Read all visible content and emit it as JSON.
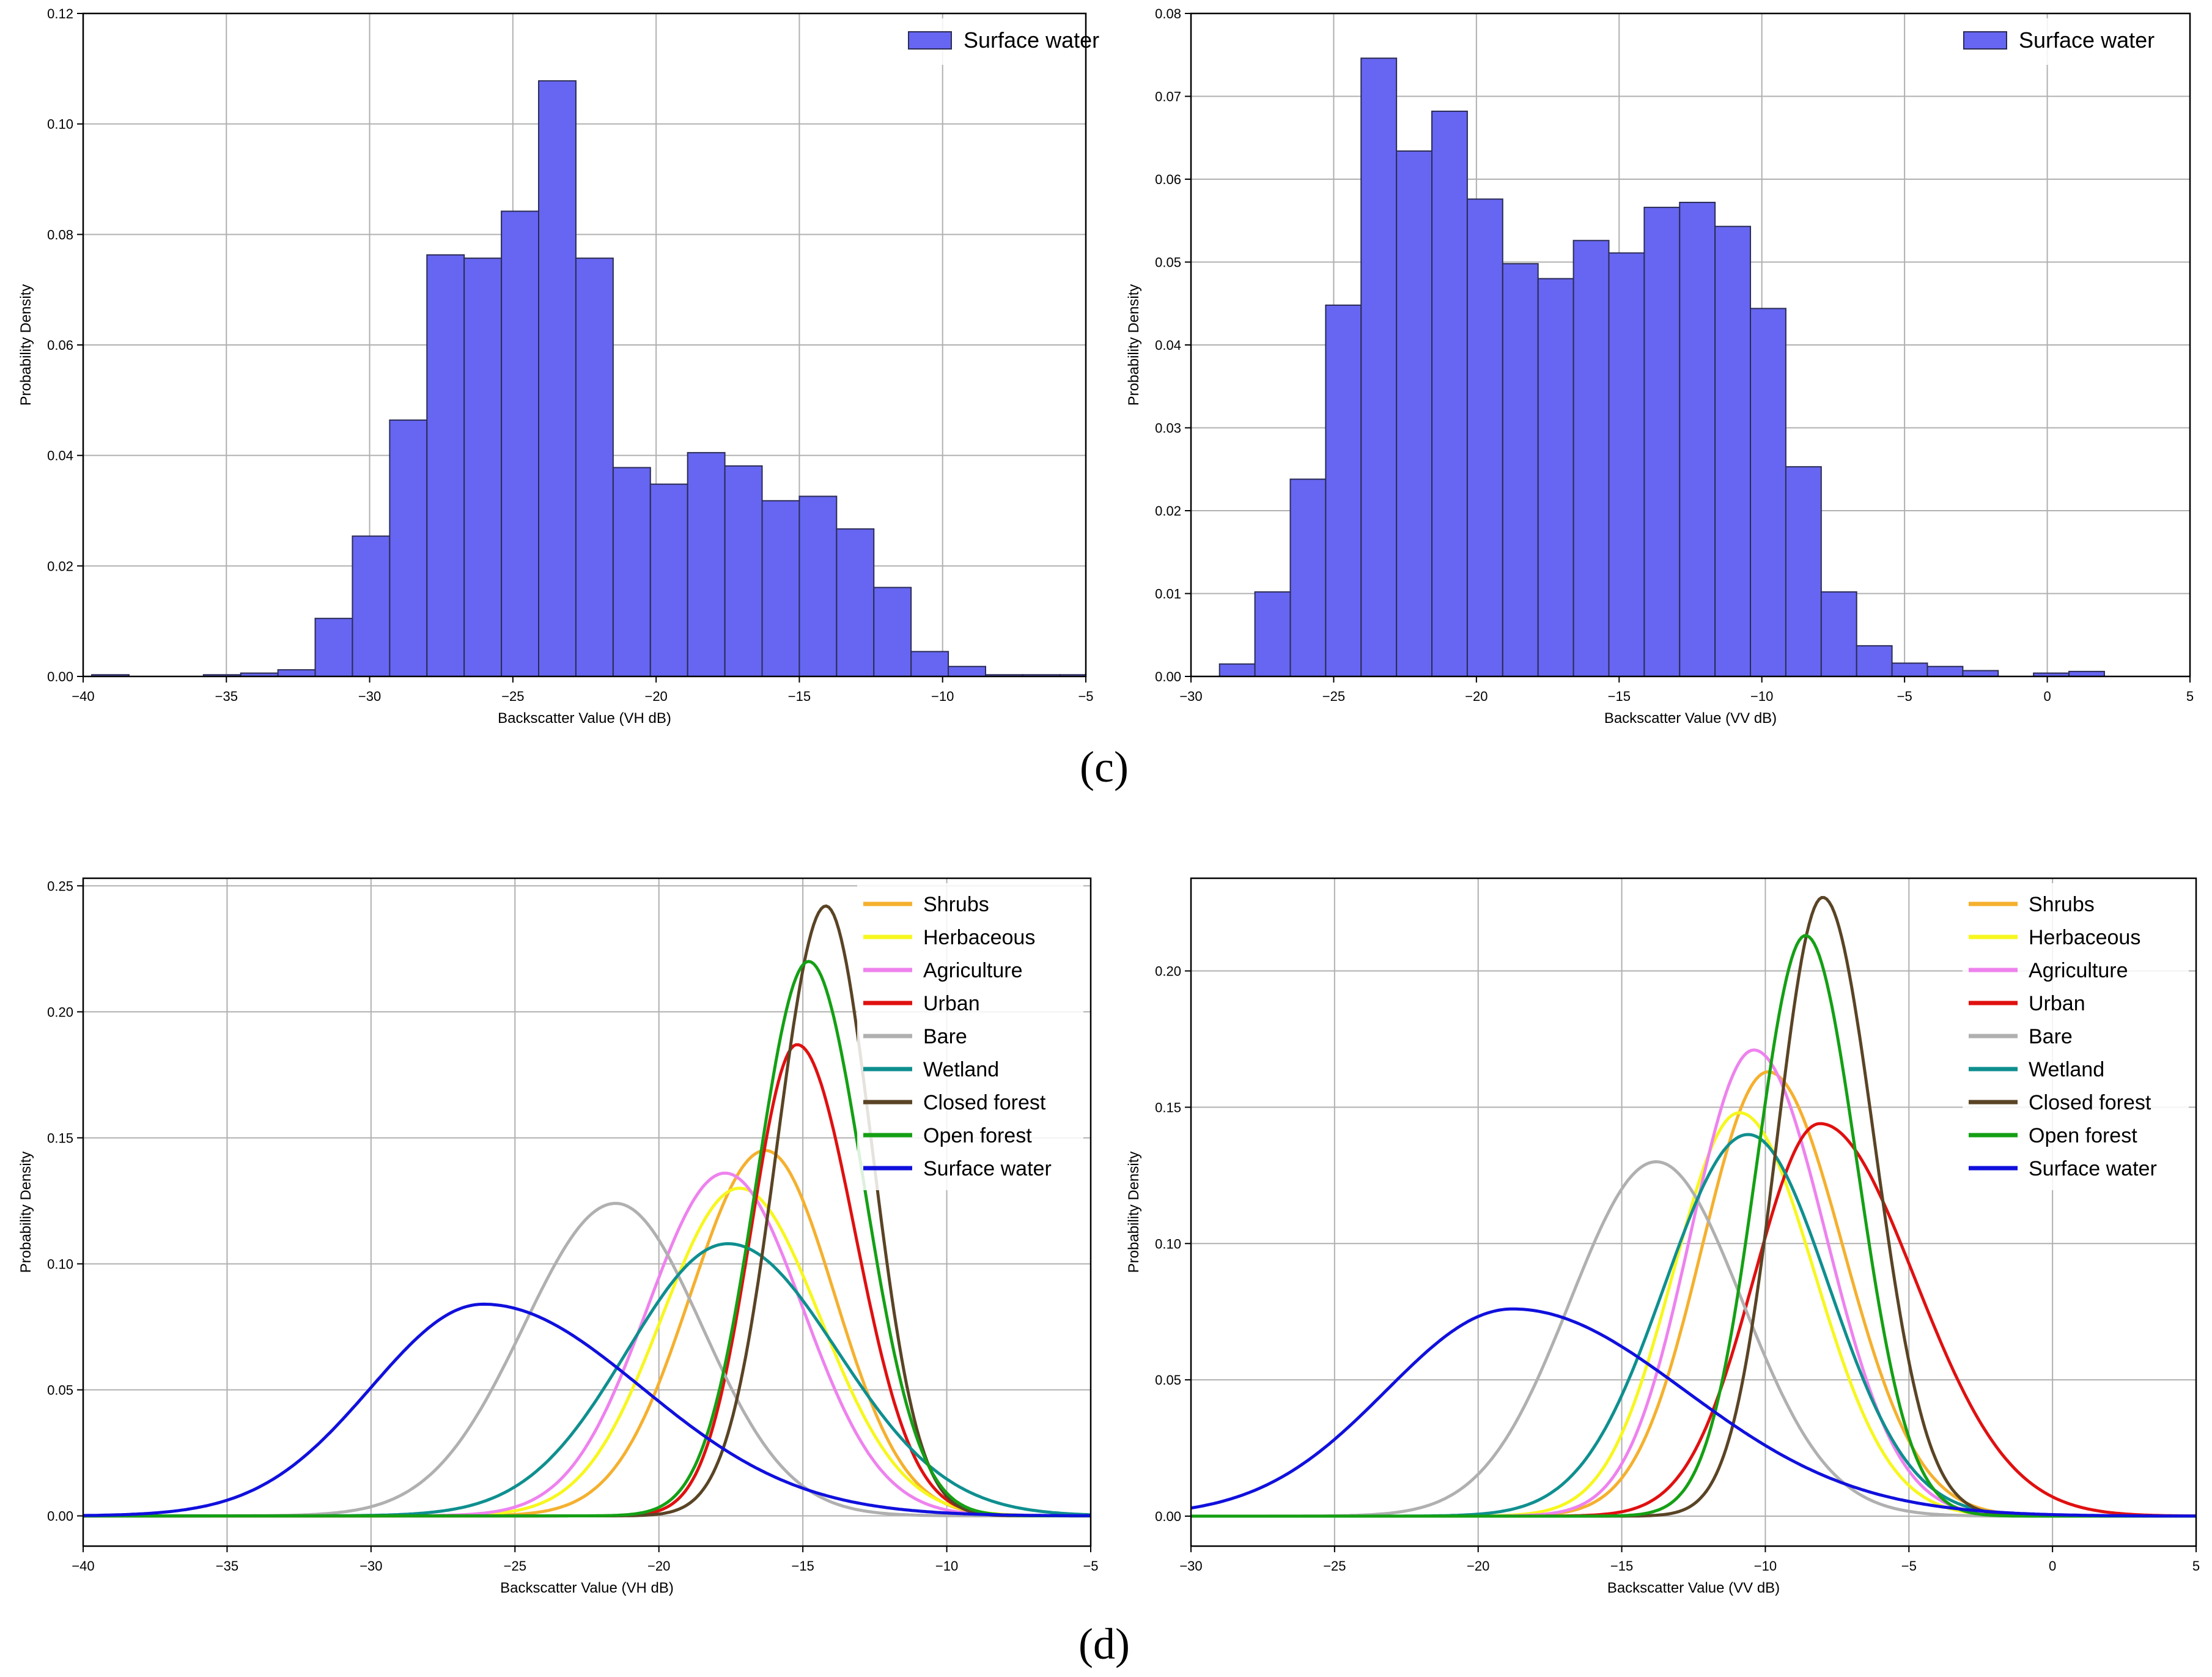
{
  "figure": {
    "panel_labels": [
      "(c)",
      "(d)"
    ]
  },
  "colors": {
    "hist_fill": "#6666f2",
    "hist_edge": "#2b2b55",
    "grid": "#b0b0b0",
    "axis": "#000000",
    "Shrubs": "#f5b02e",
    "Herbaceous": "#f7f71e",
    "Agriculture": "#ee82ee",
    "Urban": "#e01010",
    "Bare": "#b0b0b0",
    "Wetland": "#0f8f8f",
    "Closed forest": "#5a4425",
    "Open forest": "#14a014",
    "Surface water": "#1010dd"
  },
  "chart_data": [
    {
      "id": "vh-hist",
      "type": "bar",
      "title": "",
      "xlabel": "Backscatter Value (VH dB)",
      "ylabel": "Probability Density",
      "xlim": [
        -40,
        -5
      ],
      "ylim": [
        0,
        0.12
      ],
      "xticks": [
        -40,
        -35,
        -30,
        -25,
        -20,
        -15,
        -10,
        -5
      ],
      "yticks": [
        0.0,
        0.02,
        0.04,
        0.06,
        0.08,
        0.1,
        0.12
      ],
      "ytick_labels": [
        "0.00",
        "0.02",
        "0.04",
        "0.06",
        "0.08",
        "0.10",
        "0.12"
      ],
      "grid": true,
      "legend": {
        "position": "top-right",
        "entries": [
          "Surface water"
        ]
      },
      "bin_start": -39.7,
      "bin_width": 1.3,
      "values": [
        0.0003,
        0.0,
        0.0,
        0.0003,
        0.0006,
        0.0012,
        0.0105,
        0.0254,
        0.0464,
        0.0763,
        0.0757,
        0.0842,
        0.1078,
        0.0757,
        0.0378,
        0.0348,
        0.0405,
        0.0381,
        0.0318,
        0.0326,
        0.0267,
        0.0161,
        0.0045,
        0.0018,
        0.0003,
        0.0003,
        0.0003
      ]
    },
    {
      "id": "vv-hist",
      "type": "bar",
      "title": "",
      "xlabel": "Backscatter Value (VV dB)",
      "ylabel": "Probability Density",
      "xlim": [
        -30,
        5
      ],
      "ylim": [
        0,
        0.08
      ],
      "xticks": [
        -30,
        -25,
        -20,
        -15,
        -10,
        -5,
        0,
        5
      ],
      "yticks": [
        0.0,
        0.01,
        0.02,
        0.03,
        0.04,
        0.05,
        0.06,
        0.07,
        0.08
      ],
      "ytick_labels": [
        "0.00",
        "0.01",
        "0.02",
        "0.03",
        "0.04",
        "0.05",
        "0.06",
        "0.07",
        "0.08"
      ],
      "grid": true,
      "legend": {
        "position": "top-right",
        "entries": [
          "Surface water"
        ]
      },
      "bin_start": -29.0,
      "bin_width": 1.24,
      "values": [
        0.0015,
        0.0102,
        0.0238,
        0.0448,
        0.0746,
        0.0634,
        0.0682,
        0.0576,
        0.0498,
        0.048,
        0.0526,
        0.0511,
        0.0566,
        0.0572,
        0.0543,
        0.0444,
        0.0253,
        0.0102,
        0.0037,
        0.0016,
        0.0012,
        0.0007,
        0.0,
        0.0004,
        0.0006
      ]
    },
    {
      "id": "vh-density",
      "type": "line",
      "title": "",
      "xlabel": "Backscatter Value (VH dB)",
      "ylabel": "Probability Density",
      "xlim": [
        -40,
        -5
      ],
      "ylim": [
        -0.012,
        0.253
      ],
      "xticks": [
        -40,
        -35,
        -30,
        -25,
        -20,
        -15,
        -10,
        -5
      ],
      "yticks": [
        0.0,
        0.05,
        0.1,
        0.15,
        0.2,
        0.25
      ],
      "ytick_labels": [
        "0.00",
        "0.05",
        "0.10",
        "0.15",
        "0.20",
        "0.25"
      ],
      "grid": true,
      "legend": {
        "position": "top-right"
      },
      "series": [
        {
          "name": "Shrubs",
          "peak_x": -16.3,
          "peak_y": 0.145,
          "sigma_left": 2.6,
          "sigma_right": 2.4
        },
        {
          "name": "Herbaceous",
          "peak_x": -17.2,
          "peak_y": 0.13,
          "sigma_left": 2.7,
          "sigma_right": 2.8
        },
        {
          "name": "Agriculture",
          "peak_x": -17.7,
          "peak_y": 0.136,
          "sigma_left": 2.7,
          "sigma_right": 2.7
        },
        {
          "name": "Urban",
          "peak_x": -15.2,
          "peak_y": 0.187,
          "sigma_left": 1.6,
          "sigma_right": 2.0
        },
        {
          "name": "Bare",
          "peak_x": -21.5,
          "peak_y": 0.124,
          "sigma_left": 3.2,
          "sigma_right": 3.0
        },
        {
          "name": "Wetland",
          "peak_x": -17.6,
          "peak_y": 0.108,
          "sigma_left": 3.5,
          "sigma_right": 3.8
        },
        {
          "name": "Closed forest",
          "peak_x": -14.2,
          "peak_y": 0.242,
          "sigma_left": 1.7,
          "sigma_right": 1.6
        },
        {
          "name": "Open forest",
          "peak_x": -14.8,
          "peak_y": 0.22,
          "sigma_left": 1.8,
          "sigma_right": 1.9
        },
        {
          "name": "Surface water",
          "peak_x": -26.1,
          "peak_y": 0.084,
          "sigma_left": 3.9,
          "sigma_right": 5.5
        }
      ]
    },
    {
      "id": "vv-density",
      "type": "line",
      "title": "",
      "xlabel": "Backscatter Value (VV dB)",
      "ylabel": "Probability Density",
      "xlim": [
        -30,
        5
      ],
      "ylim": [
        -0.011,
        0.234
      ],
      "xticks": [
        -30,
        -25,
        -20,
        -15,
        -10,
        -5,
        0,
        5
      ],
      "yticks": [
        0.0,
        0.05,
        0.1,
        0.15,
        0.2
      ],
      "ytick_labels": [
        "0.00",
        "0.05",
        "0.10",
        "0.15",
        "0.20"
      ],
      "grid": true,
      "legend": {
        "position": "top-right"
      },
      "series": [
        {
          "name": "Shrubs",
          "peak_x": -9.9,
          "peak_y": 0.163,
          "sigma_left": 2.3,
          "sigma_right": 2.6
        },
        {
          "name": "Herbaceous",
          "peak_x": -10.9,
          "peak_y": 0.148,
          "sigma_left": 2.3,
          "sigma_right": 2.6
        },
        {
          "name": "Agriculture",
          "peak_x": -10.4,
          "peak_y": 0.171,
          "sigma_left": 2.2,
          "sigma_right": 2.5
        },
        {
          "name": "Urban",
          "peak_x": -8.1,
          "peak_y": 0.144,
          "sigma_left": 2.3,
          "sigma_right": 3.3
        },
        {
          "name": "Bare",
          "peak_x": -13.8,
          "peak_y": 0.13,
          "sigma_left": 3.0,
          "sigma_right": 3.0
        },
        {
          "name": "Wetland",
          "peak_x": -10.6,
          "peak_y": 0.14,
          "sigma_left": 2.9,
          "sigma_right": 2.8
        },
        {
          "name": "Closed forest",
          "peak_x": -8.0,
          "peak_y": 0.227,
          "sigma_left": 1.6,
          "sigma_right": 1.8
        },
        {
          "name": "Open forest",
          "peak_x": -8.6,
          "peak_y": 0.213,
          "sigma_left": 1.7,
          "sigma_right": 1.8
        },
        {
          "name": "Surface water",
          "peak_x": -18.8,
          "peak_y": 0.076,
          "sigma_left": 4.4,
          "sigma_right": 6.0
        }
      ]
    }
  ]
}
